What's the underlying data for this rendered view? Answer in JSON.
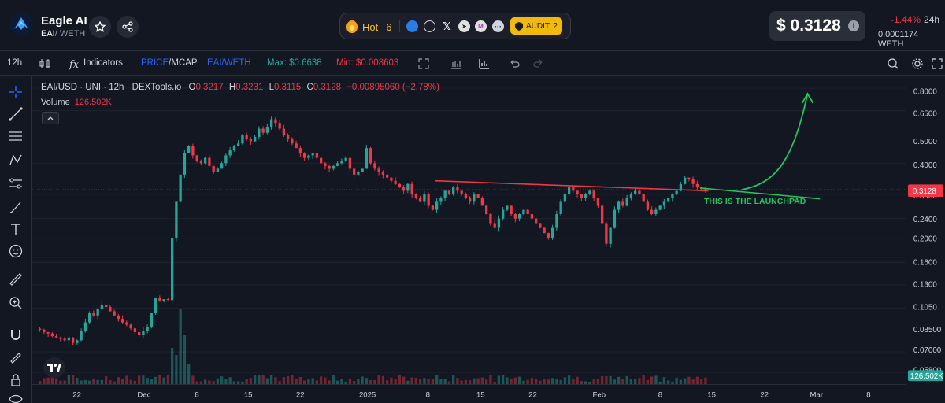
{
  "header": {
    "name": "Eagle AI",
    "pair_base": "EAI",
    "pair_quote": "/ WETH",
    "hot_label": "Hot",
    "hot_rank": "6",
    "audit_label": "AUDIT: 2",
    "price": "$ 0.3128",
    "change": "-1.44%",
    "change_period": "24h",
    "weth_price": "0.0001174  WETH",
    "info_glyph": "i"
  },
  "toolbar": {
    "interval": "12h",
    "indicators": "Indicators",
    "price_mcap_a": "PRICE",
    "price_mcap_b": "/MCAP",
    "pair_toggle": "EAI/WETH",
    "max": "Max: $0.6638",
    "min": "Min: $0.008603"
  },
  "legend": {
    "symbol": "EAI/USD · UNI · 12h · DEXTools.io",
    "o_label": "O",
    "o_value": "0.3217",
    "h_label": "H",
    "h_value": "0.3231",
    "l_label": "L",
    "l_value": "0.3115",
    "c_label": "C",
    "c_value": "0.3128",
    "change_value": "−0.00895060 (−2.78%)",
    "volume_label": "Volume",
    "volume_value": "126.502K"
  },
  "annotation": {
    "launchpad_text": "THIS IS THE LAUNCHPAD"
  },
  "colors": {
    "up": "#26a69a",
    "down": "#f23645",
    "accent": "#2962ff",
    "trend_red": "#f23645",
    "trend_green": "#22c55e",
    "audit": "#f0b90b"
  },
  "icons": [
    "eagle-logo",
    "star-icon",
    "share-icon",
    "flame-icon",
    "globe-icon",
    "x-icon",
    "telegram-icon",
    "shield-icon",
    "info-icon",
    "candles-icon",
    "indicators-icon",
    "fullscreen-icon",
    "undo-icon",
    "redo-icon",
    "settings-icon",
    "expand-icon",
    "crosshair-icon",
    "trendline-icon",
    "fib-icon",
    "pattern-icon",
    "brush-icon",
    "text-icon",
    "emoji-icon",
    "ruler-icon",
    "zoom-icon",
    "magnet-icon",
    "lock-icon",
    "eye-icon"
  ],
  "chart_data": {
    "type": "candlestick",
    "scale": "log",
    "y_ticks": [
      "0.8000",
      "0.6500",
      "0.5000",
      "0.4000",
      "0.3000",
      "0.2400",
      "0.2000",
      "0.1600",
      "0.1300",
      "0.1050",
      "0.08500",
      "0.07000",
      "0.05800"
    ],
    "y_tick_values": [
      0.8,
      0.65,
      0.5,
      0.4,
      0.3,
      0.24,
      0.2,
      0.16,
      0.13,
      0.105,
      0.085,
      0.07,
      0.058
    ],
    "x_ticks": [
      "22",
      "Dec",
      "8",
      "15",
      "22",
      "2025",
      "8",
      "15",
      "22",
      "Feb",
      "8",
      "15",
      "22",
      "Mar",
      "8"
    ],
    "current_price_label": "0.3128",
    "volume_axis_label": "126.502K",
    "close_series": [
      0.086,
      0.084,
      0.083,
      0.081,
      0.08,
      0.079,
      0.078,
      0.08,
      0.076,
      0.078,
      0.085,
      0.092,
      0.1,
      0.098,
      0.104,
      0.108,
      0.106,
      0.102,
      0.098,
      0.095,
      0.092,
      0.09,
      0.087,
      0.084,
      0.082,
      0.085,
      0.088,
      0.1,
      0.115,
      0.112,
      0.114,
      0.113,
      0.2,
      0.28,
      0.36,
      0.44,
      0.47,
      0.43,
      0.41,
      0.4,
      0.42,
      0.39,
      0.37,
      0.38,
      0.4,
      0.43,
      0.45,
      0.47,
      0.48,
      0.52,
      0.5,
      0.49,
      0.51,
      0.55,
      0.53,
      0.56,
      0.6,
      0.58,
      0.55,
      0.52,
      0.5,
      0.48,
      0.46,
      0.44,
      0.42,
      0.43,
      0.44,
      0.42,
      0.4,
      0.39,
      0.38,
      0.39,
      0.4,
      0.41,
      0.42,
      0.38,
      0.36,
      0.37,
      0.38,
      0.46,
      0.4,
      0.38,
      0.37,
      0.36,
      0.35,
      0.34,
      0.33,
      0.32,
      0.31,
      0.33,
      0.3,
      0.29,
      0.28,
      0.3,
      0.27,
      0.26,
      0.28,
      0.29,
      0.31,
      0.3,
      0.32,
      0.31,
      0.3,
      0.29,
      0.28,
      0.3,
      0.29,
      0.27,
      0.25,
      0.23,
      0.22,
      0.24,
      0.26,
      0.27,
      0.25,
      0.24,
      0.25,
      0.26,
      0.25,
      0.24,
      0.23,
      0.22,
      0.21,
      0.2,
      0.22,
      0.25,
      0.28,
      0.3,
      0.32,
      0.31,
      0.3,
      0.29,
      0.3,
      0.31,
      0.29,
      0.27,
      0.23,
      0.19,
      0.22,
      0.26,
      0.28,
      0.27,
      0.29,
      0.3,
      0.31,
      0.3,
      0.28,
      0.26,
      0.25,
      0.26,
      0.27,
      0.28,
      0.29,
      0.3,
      0.31,
      0.33,
      0.35,
      0.345,
      0.33,
      0.32,
      0.315,
      0.3128
    ],
    "target_arrow": {
      "from_price": 0.3128,
      "to_price": 0.76
    }
  }
}
